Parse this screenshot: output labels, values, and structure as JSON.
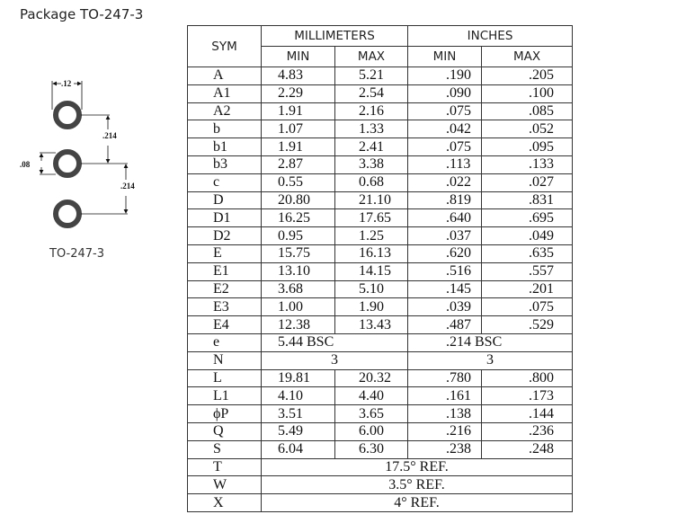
{
  "title": "Package TO-247-3",
  "drawing": {
    "caption": "TO-247-3",
    "dim_width": ".12",
    "dim_hole": ".08",
    "dim_pitch_1": ".214",
    "dim_pitch_2": ".214"
  },
  "table": {
    "headers": {
      "sym": "SYM",
      "mm": "MILLIMETERS",
      "in": "INCHES",
      "min": "MIN",
      "max": "MAX"
    },
    "rows": [
      {
        "sym": "A",
        "mm_min": "4.83",
        "mm_max": "5.21",
        "in_min": ".190",
        "in_max": ".205"
      },
      {
        "sym": "A1",
        "mm_min": "2.29",
        "mm_max": "2.54",
        "in_min": ".090",
        "in_max": ".100"
      },
      {
        "sym": "A2",
        "mm_min": "1.91",
        "mm_max": "2.16",
        "in_min": ".075",
        "in_max": ".085"
      },
      {
        "sym": "b",
        "mm_min": "1.07",
        "mm_max": "1.33",
        "in_min": ".042",
        "in_max": ".052"
      },
      {
        "sym": "b1",
        "mm_min": "1.91",
        "mm_max": "2.41",
        "in_min": ".075",
        "in_max": ".095"
      },
      {
        "sym": "b3",
        "mm_min": "2.87",
        "mm_max": "3.38",
        "in_min": ".113",
        "in_max": ".133"
      },
      {
        "sym": "c",
        "mm_min": "0.55",
        "mm_max": "0.68",
        "in_min": ".022",
        "in_max": ".027"
      },
      {
        "sym": "D",
        "mm_min": "20.80",
        "mm_max": "21.10",
        "in_min": ".819",
        "in_max": ".831"
      },
      {
        "sym": "D1",
        "mm_min": "16.25",
        "mm_max": "17.65",
        "in_min": ".640",
        "in_max": ".695"
      },
      {
        "sym": "D2",
        "mm_min": "0.95",
        "mm_max": "1.25",
        "in_min": ".037",
        "in_max": ".049"
      },
      {
        "sym": "E",
        "mm_min": "15.75",
        "mm_max": "16.13",
        "in_min": ".620",
        "in_max": ".635"
      },
      {
        "sym": "E1",
        "mm_min": "13.10",
        "mm_max": "14.15",
        "in_min": ".516",
        "in_max": ".557"
      },
      {
        "sym": "E2",
        "mm_min": "3.68",
        "mm_max": "5.10",
        "in_min": ".145",
        "in_max": ".201"
      },
      {
        "sym": "E3",
        "mm_min": "1.00",
        "mm_max": "1.90",
        "in_min": ".039",
        "in_max": ".075"
      },
      {
        "sym": "E4",
        "mm_min": "12.38",
        "mm_max": "13.43",
        "in_min": ".487",
        "in_max": ".529"
      },
      {
        "sym": "e",
        "mm": "5.44 BSC",
        "in": ".214 BSC"
      },
      {
        "sym": "N",
        "mm": "3",
        "in": "3",
        "center": true
      },
      {
        "sym": "L",
        "mm_min": "19.81",
        "mm_max": "20.32",
        "in_min": ".780",
        "in_max": ".800"
      },
      {
        "sym": "L1",
        "mm_min": "4.10",
        "mm_max": "4.40",
        "in_min": ".161",
        "in_max": ".173"
      },
      {
        "sym": "ϕP",
        "mm_min": "3.51",
        "mm_max": "3.65",
        "in_min": ".138",
        "in_max": ".144"
      },
      {
        "sym": "Q",
        "mm_min": "5.49",
        "mm_max": "6.00",
        "in_min": ".216",
        "in_max": ".236"
      },
      {
        "sym": "S",
        "mm_min": "6.04",
        "mm_max": "6.30",
        "in_min": ".238",
        "in_max": ".248"
      },
      {
        "sym": "T",
        "all": "17.5° REF."
      },
      {
        "sym": "W",
        "all": "3.5° REF."
      },
      {
        "sym": "X",
        "all": "4° REF."
      }
    ]
  }
}
